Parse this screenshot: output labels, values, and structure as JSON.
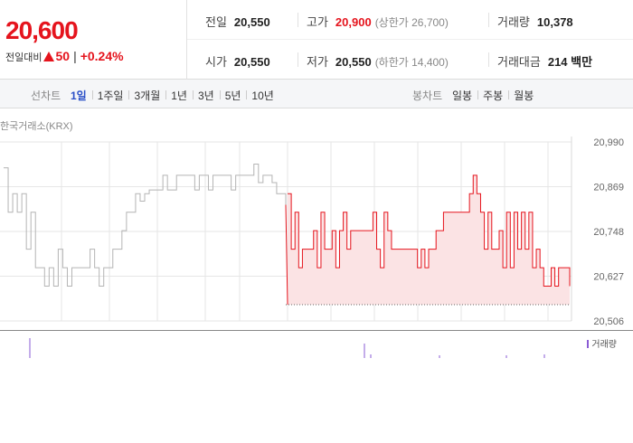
{
  "quote": {
    "price": "20,600",
    "diff_label": "전일대비",
    "diff_value": "50",
    "diff_rate": "+0.24%",
    "color_up": "#e5141d"
  },
  "stats": {
    "prev_close": {
      "label": "전일",
      "value": "20,550"
    },
    "high": {
      "label": "고가",
      "value": "20,900",
      "sub": "(상한가 26,700)"
    },
    "volume": {
      "label": "거래량",
      "value": "10,378"
    },
    "open": {
      "label": "시가",
      "value": "20,550"
    },
    "low": {
      "label": "저가",
      "value": "20,550",
      "sub": "(하한가 14,400)"
    },
    "trade_amount": {
      "label": "거래대금",
      "value": "214 백만"
    }
  },
  "period_bar": {
    "line_label": "선차트",
    "line_tabs": [
      {
        "label": "1일",
        "active": true
      },
      {
        "label": "1주일",
        "active": false
      },
      {
        "label": "3개월",
        "active": false
      },
      {
        "label": "1년",
        "active": false
      },
      {
        "label": "3년",
        "active": false
      },
      {
        "label": "5년",
        "active": false
      },
      {
        "label": "10년",
        "active": false
      }
    ],
    "candle_label": "봉차트",
    "candle_tabs": [
      {
        "label": "일봉"
      },
      {
        "label": "주봉"
      },
      {
        "label": "월봉"
      }
    ]
  },
  "chart_data": {
    "type": "line",
    "exchange_label": "한국거래소(KRX)",
    "y_tick_labels": [
      "20,990",
      "20,869",
      "20,748",
      "20,627",
      "20,506"
    ],
    "ylim": [
      20506,
      20990
    ],
    "baseline": 20550,
    "colors": {
      "prev_day": "#b4b4b4",
      "today": "#e5141d",
      "fill": "#fbe3e4",
      "grid": "#e6e6e6"
    },
    "series": [
      {
        "values": [
          20920,
          20800,
          20850,
          20800,
          20850,
          20700,
          20800,
          20650,
          20650,
          20600,
          20650,
          20600,
          20700,
          20650,
          20600,
          20650,
          20650,
          20650,
          20650,
          20700,
          20650,
          20600,
          20650,
          20650,
          20700,
          20700,
          20750,
          20800,
          20800,
          20850,
          20830,
          20850,
          20860,
          20860,
          20860,
          20900,
          20860,
          20860,
          20900,
          20900,
          20900,
          20900,
          20860,
          20900,
          20900,
          20860,
          20900,
          20900,
          20900,
          20900,
          20860,
          20900,
          20900,
          20900,
          20900,
          20930,
          20880,
          20900,
          20900,
          20880,
          20850,
          20850,
          20820
        ]
      },
      {
        "values": [
          20850,
          20700,
          20800,
          20650,
          20700,
          20700,
          20700,
          20750,
          20650,
          20800,
          20700,
          20700,
          20750,
          20650,
          20750,
          20800,
          20700,
          20750,
          20750,
          20750,
          20750,
          20750,
          20750,
          20800,
          20700,
          20650,
          20800,
          20750,
          20700,
          20700,
          20700,
          20700,
          20700,
          20700,
          20700,
          20650,
          20700,
          20650,
          20700,
          20700,
          20750,
          20750,
          20800,
          20800,
          20800,
          20800,
          20800,
          20800,
          20800,
          20850,
          20900,
          20850,
          20800,
          20700,
          20800,
          20700,
          20700,
          20750,
          20650,
          20800,
          20650,
          20800,
          20700,
          20800,
          20700,
          20800,
          20650,
          20700,
          20650,
          20600,
          20600,
          20650,
          20600,
          20650,
          20650,
          20650,
          20600
        ]
      }
    ],
    "volume_legend": "거래량"
  }
}
